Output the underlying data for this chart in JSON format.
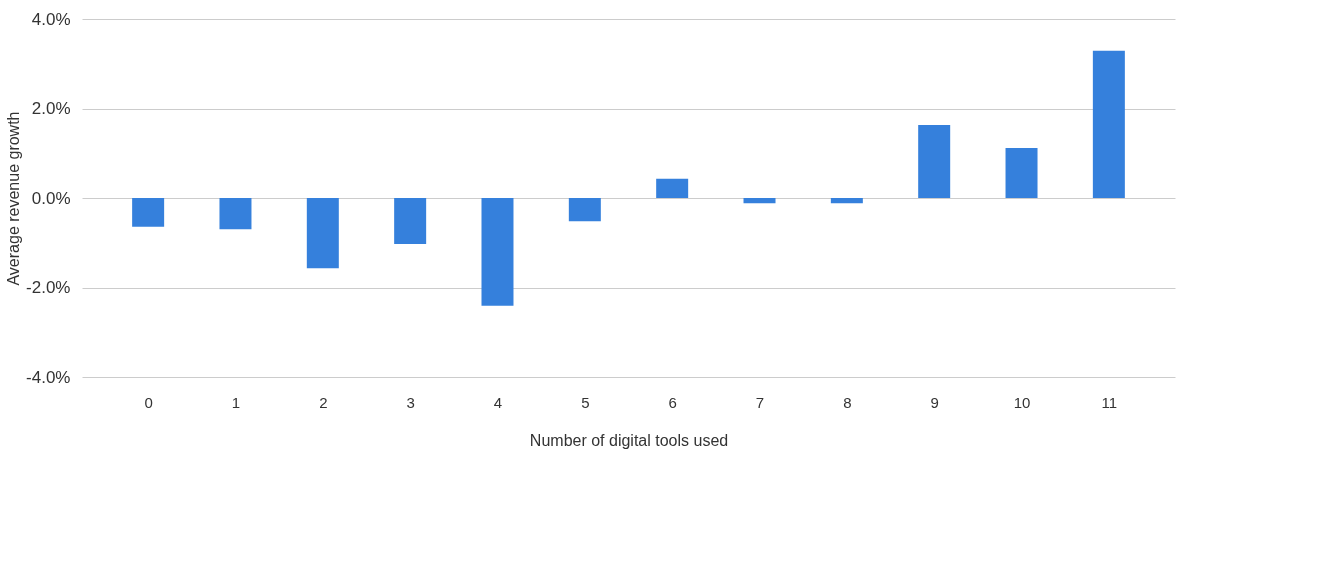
{
  "chart_data": {
    "type": "bar",
    "xlabel": "Number of digital tools used",
    "ylabel": "Average revenue growth",
    "categories": [
      "0",
      "1",
      "2",
      "3",
      "4",
      "5",
      "6",
      "7",
      "8",
      "9",
      "10",
      "11"
    ],
    "values": [
      -0.64,
      -0.7,
      -1.57,
      -1.03,
      -2.41,
      -0.52,
      0.43,
      -0.12,
      -0.12,
      1.63,
      1.12,
      3.29
    ],
    "color": "#3580dc",
    "ylim": [
      -4,
      4
    ],
    "yticks": [
      {
        "value": -4,
        "label": "-4.0%"
      },
      {
        "value": -2,
        "label": "-2.0%"
      },
      {
        "value": 0,
        "label": "0.0%"
      },
      {
        "value": 2,
        "label": "2.0%"
      },
      {
        "value": 4,
        "label": "4.0%"
      }
    ],
    "grid": "y"
  }
}
